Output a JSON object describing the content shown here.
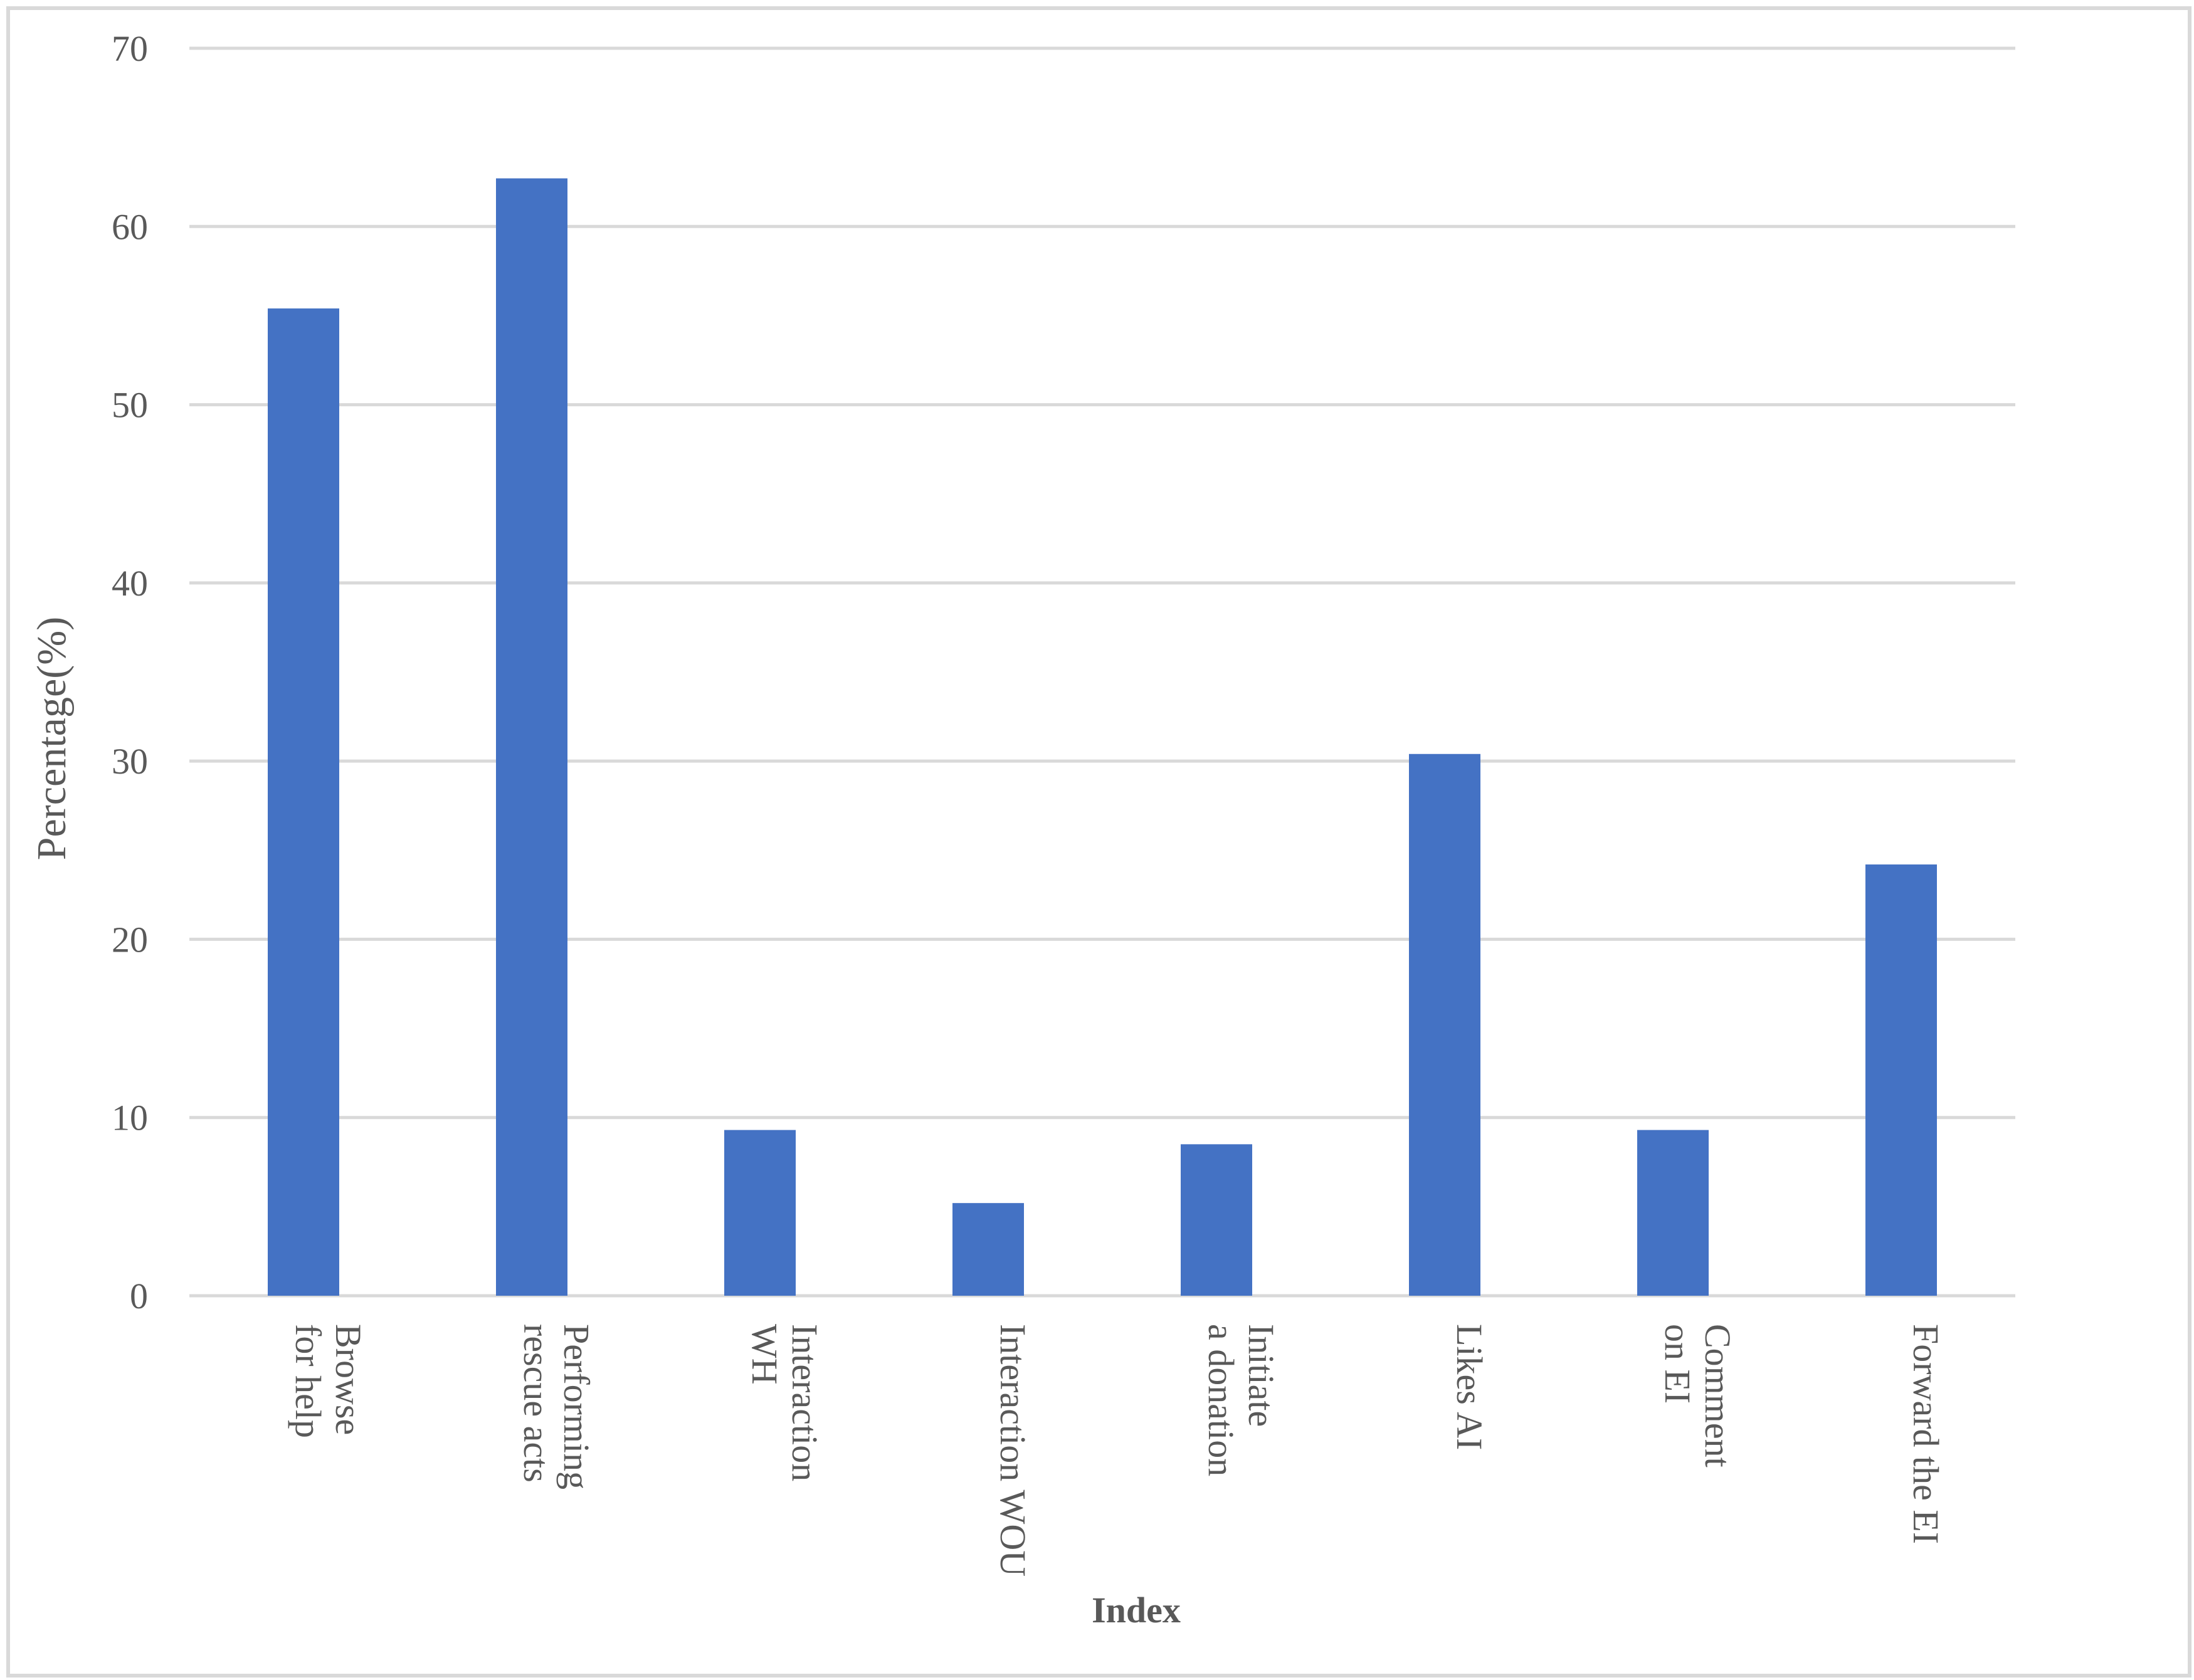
{
  "chart_data": {
    "type": "bar",
    "title": "",
    "xlabel": "Index",
    "ylabel": "Percentage(%)",
    "ylim": [
      0,
      70
    ],
    "yticks": [
      0,
      10,
      20,
      30,
      40,
      50,
      60,
      70
    ],
    "grid": true,
    "legend": "none",
    "bar_color": "#4472c4",
    "grid_color": "#d9d9d9",
    "text_color": "#595959",
    "categories": [
      [
        "Browse",
        "for help"
      ],
      [
        "Performing",
        "rescue acts"
      ],
      [
        "Interaction",
        "WH"
      ],
      [
        "Interaction WOU"
      ],
      [
        "Initiate",
        "a donation"
      ],
      [
        "Likes AI"
      ],
      [
        "Comment",
        "on EI"
      ],
      [
        "Forward the EI"
      ]
    ],
    "values": [
      55.4,
      62.7,
      9.3,
      5.2,
      8.5,
      30.4,
      9.3,
      24.2
    ]
  }
}
